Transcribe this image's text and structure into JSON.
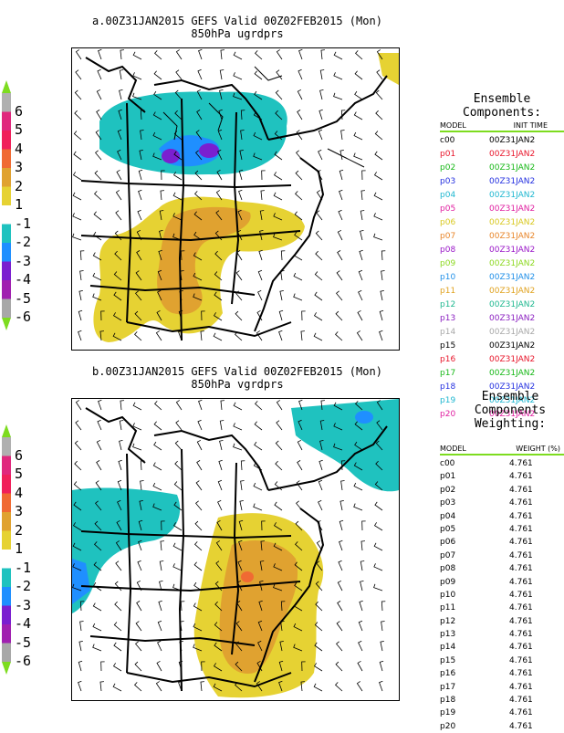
{
  "panel_a": {
    "title_line1": "a.00Z31JAN2015  GEFS Valid 00Z02FEB2015 (Mon)",
    "title_line2": "850hPa ugrdprs"
  },
  "panel_b": {
    "title_line1": "b.00Z31JAN2015  GEFS Valid 00Z02FEB2015 (Mon)",
    "title_line2": "850hPa vgrdprs"
  },
  "colorbar": {
    "levels": [
      {
        "label": "6",
        "color": "#b0b0b0"
      },
      {
        "label": "5",
        "color": "#e0287d"
      },
      {
        "label": "4",
        "color": "#f0205a"
      },
      {
        "label": "3",
        "color": "#f06a33"
      },
      {
        "label": "2",
        "color": "#e0a230"
      },
      {
        "label": "1",
        "color": "#e6d233"
      },
      {
        "label": "-1",
        "color": "#ffffff"
      },
      {
        "label": "-2",
        "color": "#1fc2bf"
      },
      {
        "label": "-3",
        "color": "#1f8fff"
      },
      {
        "label": "-4",
        "color": "#7a1fd0"
      },
      {
        "label": "-5",
        "color": "#a020b0"
      },
      {
        "label": "-6",
        "color": "#a8a8a8"
      }
    ],
    "arrow_color": "#7ddc1f"
  },
  "components": {
    "heading_line1": "Ensemble",
    "heading_line2": "Components:",
    "col_model": "MODEL",
    "col_init": "INIT TIME",
    "rows": [
      {
        "model": "c00",
        "init": "00Z31JAN2",
        "color": "#000000"
      },
      {
        "model": "p01",
        "init": "00Z31JAN2",
        "color": "#e8152a"
      },
      {
        "model": "p02",
        "init": "00Z31JAN2",
        "color": "#18b818"
      },
      {
        "model": "p03",
        "init": "00Z31JAN2",
        "color": "#2430e0"
      },
      {
        "model": "p04",
        "init": "00Z31JAN2",
        "color": "#1fb7d0"
      },
      {
        "model": "p05",
        "init": "00Z31JAN2",
        "color": "#e01fa0"
      },
      {
        "model": "p06",
        "init": "00Z31JAN2",
        "color": "#d8c81f"
      },
      {
        "model": "p07",
        "init": "00Z31JAN2",
        "color": "#e8862a"
      },
      {
        "model": "p08",
        "init": "00Z31JAN2",
        "color": "#9a18c8"
      },
      {
        "model": "p09",
        "init": "00Z31JAN2",
        "color": "#8cd81f"
      },
      {
        "model": "p10",
        "init": "00Z31JAN2",
        "color": "#1f8fe8"
      },
      {
        "model": "p11",
        "init": "00Z31JAN2",
        "color": "#e0a21f"
      },
      {
        "model": "p12",
        "init": "00Z31JAN2",
        "color": "#1fb890"
      },
      {
        "model": "p13",
        "init": "00Z31JAN2",
        "color": "#8a1fc0"
      },
      {
        "model": "p14",
        "init": "00Z31JAN2",
        "color": "#a8a8a8"
      },
      {
        "model": "p15",
        "init": "00Z31JAN2",
        "color": "#000000"
      },
      {
        "model": "p16",
        "init": "00Z31JAN2",
        "color": "#e8152a"
      },
      {
        "model": "p17",
        "init": "00Z31JAN2",
        "color": "#18b818"
      },
      {
        "model": "p18",
        "init": "00Z31JAN2",
        "color": "#2430e0"
      },
      {
        "model": "p19",
        "init": "00Z31JAN2",
        "color": "#1fb7d0"
      },
      {
        "model": "p20",
        "init": "00Z31JAN2",
        "color": "#e01fa0"
      }
    ]
  },
  "weighting": {
    "heading_line1": "Ensemble",
    "heading_line2": "Components",
    "heading_line3": "Weighting:",
    "col_model": "MODEL",
    "col_weight": "WEIGHT (%)",
    "rows": [
      {
        "model": "c00",
        "weight": "4.761"
      },
      {
        "model": "p01",
        "weight": "4.761"
      },
      {
        "model": "p02",
        "weight": "4.761"
      },
      {
        "model": "p03",
        "weight": "4.761"
      },
      {
        "model": "p04",
        "weight": "4.761"
      },
      {
        "model": "p05",
        "weight": "4.761"
      },
      {
        "model": "p06",
        "weight": "4.761"
      },
      {
        "model": "p07",
        "weight": "4.761"
      },
      {
        "model": "p08",
        "weight": "4.761"
      },
      {
        "model": "p09",
        "weight": "4.761"
      },
      {
        "model": "p10",
        "weight": "4.761"
      },
      {
        "model": "p11",
        "weight": "4.761"
      },
      {
        "model": "p12",
        "weight": "4.761"
      },
      {
        "model": "p13",
        "weight": "4.761"
      },
      {
        "model": "p14",
        "weight": "4.761"
      },
      {
        "model": "p15",
        "weight": "4.761"
      },
      {
        "model": "p16",
        "weight": "4.761"
      },
      {
        "model": "p17",
        "weight": "4.761"
      },
      {
        "model": "p18",
        "weight": "4.761"
      },
      {
        "model": "p19",
        "weight": "4.761"
      },
      {
        "model": "p20",
        "weight": "4.761"
      }
    ]
  }
}
